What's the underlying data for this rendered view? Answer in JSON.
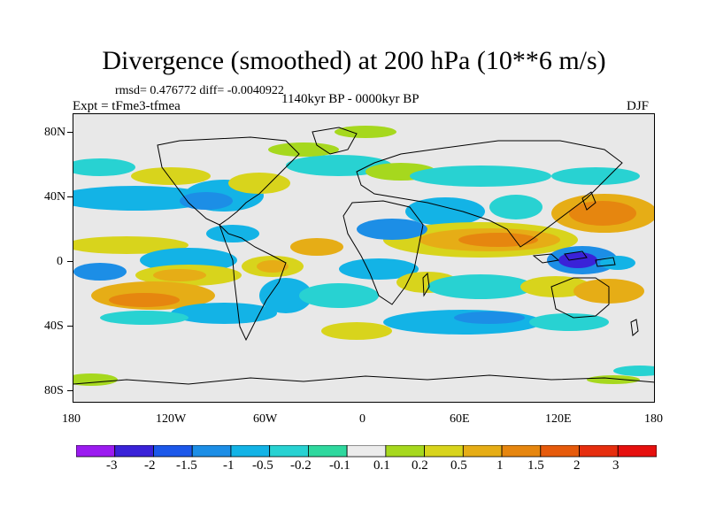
{
  "title": "Divergence (smoothed) at 200 hPa (10**6 m/s)",
  "stats": "rmsd= 0.476772  diff= -0.0040922",
  "expt": "Expt = tFme3-tfmea",
  "period": "1140kyr BP - 0000kyr BP",
  "season": "DJF",
  "axes": {
    "y_ticks": [
      "80N",
      "40N",
      "0",
      "40S",
      "80S"
    ],
    "x_ticks": [
      "180",
      "120W",
      "60W",
      "0",
      "60E",
      "120E",
      "180"
    ]
  },
  "colorbar": {
    "labels": [
      "-3",
      "-2",
      "-1.5",
      "-1",
      "-0.5",
      "-0.2",
      "-0.1",
      "0.1",
      "0.2",
      "0.5",
      "1",
      "1.5",
      "2",
      "3"
    ],
    "colors": [
      "#9b1bf0",
      "#3a22d8",
      "#1c58ea",
      "#1c8ee6",
      "#13b3e6",
      "#28d2d2",
      "#2fd89e",
      "#ececec",
      "#a6d81e",
      "#d8d41c",
      "#e6ad16",
      "#e6860f",
      "#e65a0b",
      "#e62e0e",
      "#e6100e"
    ]
  }
}
